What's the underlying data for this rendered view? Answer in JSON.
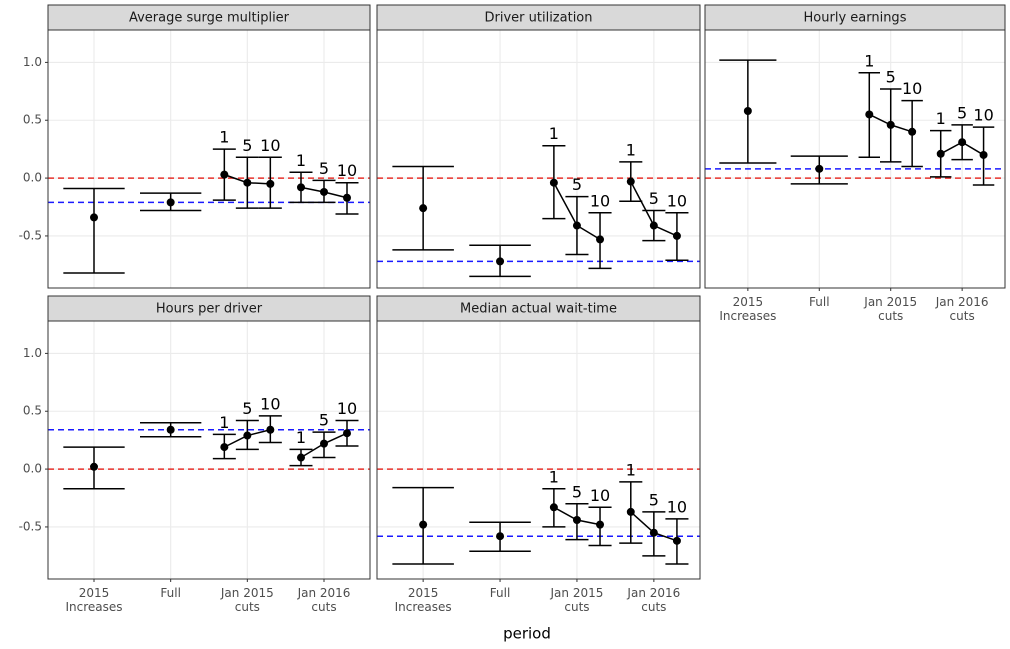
{
  "chart_data": {
    "type": "errorbar-facets",
    "xlabel": "period",
    "categories": [
      "2015\nIncreases",
      "Full",
      "Jan 2015\ncuts",
      "Jan 2016\ncuts"
    ],
    "ylim": [
      -0.95,
      1.28
    ],
    "yticks": [
      -0.5,
      {
        "value": 0,
        "label": "0.0"
      },
      0.5,
      {
        "value": 1,
        "label": "1.0"
      }
    ],
    "grid": true,
    "point_color": "#000000",
    "panels": [
      {
        "title": "Average surge multiplier",
        "hlines": [
          {
            "value": 0,
            "color": "#e8302a"
          },
          {
            "value": -0.21,
            "color": "#1a1aff"
          }
        ],
        "groups": [
          [
            {
              "value": -0.34,
              "low": -0.82,
              "high": -0.09
            }
          ],
          [
            {
              "value": -0.21,
              "low": -0.28,
              "high": -0.13
            }
          ],
          [
            {
              "label": "1",
              "value": 0.03,
              "low": -0.19,
              "high": 0.25
            },
            {
              "label": "5",
              "value": -0.04,
              "low": -0.26,
              "high": 0.18
            },
            {
              "label": "10",
              "value": -0.05,
              "low": -0.26,
              "high": 0.18
            }
          ],
          [
            {
              "label": "1",
              "value": -0.08,
              "low": -0.21,
              "high": 0.05
            },
            {
              "label": "5",
              "value": -0.12,
              "low": -0.21,
              "high": -0.02
            },
            {
              "label": "10",
              "value": -0.17,
              "low": -0.31,
              "high": -0.04
            }
          ]
        ]
      },
      {
        "title": "Driver utilization",
        "hlines": [
          {
            "value": 0,
            "color": "#e8302a"
          },
          {
            "value": -0.72,
            "color": "#1a1aff"
          }
        ],
        "groups": [
          [
            {
              "value": -0.26,
              "low": -0.62,
              "high": 0.1
            }
          ],
          [
            {
              "value": -0.72,
              "low": -0.85,
              "high": -0.58
            }
          ],
          [
            {
              "label": "1",
              "value": -0.04,
              "low": -0.35,
              "high": 0.28
            },
            {
              "label": "5",
              "value": -0.41,
              "low": -0.66,
              "high": -0.16
            },
            {
              "label": "10",
              "value": -0.53,
              "low": -0.78,
              "high": -0.3
            }
          ],
          [
            {
              "label": "1",
              "value": -0.03,
              "low": -0.2,
              "high": 0.14
            },
            {
              "label": "5",
              "value": -0.41,
              "low": -0.54,
              "high": -0.28
            },
            {
              "label": "10",
              "value": -0.5,
              "low": -0.71,
              "high": -0.3
            }
          ]
        ]
      },
      {
        "title": "Hourly earnings",
        "hlines": [
          {
            "value": 0,
            "color": "#e8302a"
          },
          {
            "value": 0.08,
            "color": "#1a1aff"
          }
        ],
        "groups": [
          [
            {
              "value": 0.58,
              "low": 0.13,
              "high": 1.02
            }
          ],
          [
            {
              "value": 0.08,
              "low": -0.05,
              "high": 0.19
            }
          ],
          [
            {
              "label": "1",
              "value": 0.55,
              "low": 0.18,
              "high": 0.91
            },
            {
              "label": "5",
              "value": 0.46,
              "low": 0.14,
              "high": 0.77
            },
            {
              "label": "10",
              "value": 0.4,
              "low": 0.1,
              "high": 0.67
            }
          ],
          [
            {
              "label": "1",
              "value": 0.21,
              "low": 0.01,
              "high": 0.41
            },
            {
              "label": "5",
              "value": 0.31,
              "low": 0.16,
              "high": 0.46
            },
            {
              "label": "10",
              "value": 0.2,
              "low": -0.06,
              "high": 0.44
            }
          ]
        ]
      },
      {
        "title": "Hours per driver",
        "hlines": [
          {
            "value": 0,
            "color": "#e8302a"
          },
          {
            "value": 0.34,
            "color": "#1a1aff"
          }
        ],
        "groups": [
          [
            {
              "value": 0.02,
              "low": -0.17,
              "high": 0.19
            }
          ],
          [
            {
              "value": 0.34,
              "low": 0.28,
              "high": 0.4
            }
          ],
          [
            {
              "label": "1",
              "value": 0.19,
              "low": 0.09,
              "high": 0.3
            },
            {
              "label": "5",
              "value": 0.29,
              "low": 0.17,
              "high": 0.42
            },
            {
              "label": "10",
              "value": 0.34,
              "low": 0.23,
              "high": 0.46
            }
          ],
          [
            {
              "label": "1",
              "value": 0.1,
              "low": 0.03,
              "high": 0.17
            },
            {
              "label": "5",
              "value": 0.22,
              "low": 0.1,
              "high": 0.32
            },
            {
              "label": "10",
              "value": 0.31,
              "low": 0.2,
              "high": 0.42
            }
          ]
        ]
      },
      {
        "title": "Median actual wait-time",
        "hlines": [
          {
            "value": 0,
            "color": "#e8302a"
          },
          {
            "value": -0.58,
            "color": "#1a1aff"
          }
        ],
        "groups": [
          [
            {
              "value": -0.48,
              "low": -0.82,
              "high": -0.16
            }
          ],
          [
            {
              "value": -0.58,
              "low": -0.71,
              "high": -0.46
            }
          ],
          [
            {
              "label": "1",
              "value": -0.33,
              "low": -0.5,
              "high": -0.17
            },
            {
              "label": "5",
              "value": -0.44,
              "low": -0.61,
              "high": -0.3
            },
            {
              "label": "10",
              "value": -0.48,
              "low": -0.66,
              "high": -0.33
            }
          ],
          [
            {
              "label": "1",
              "value": -0.37,
              "low": -0.64,
              "high": -0.11
            },
            {
              "label": "5",
              "value": -0.55,
              "low": -0.75,
              "high": -0.37
            },
            {
              "label": "10",
              "value": -0.62,
              "low": -0.82,
              "high": -0.43
            }
          ]
        ]
      }
    ]
  }
}
